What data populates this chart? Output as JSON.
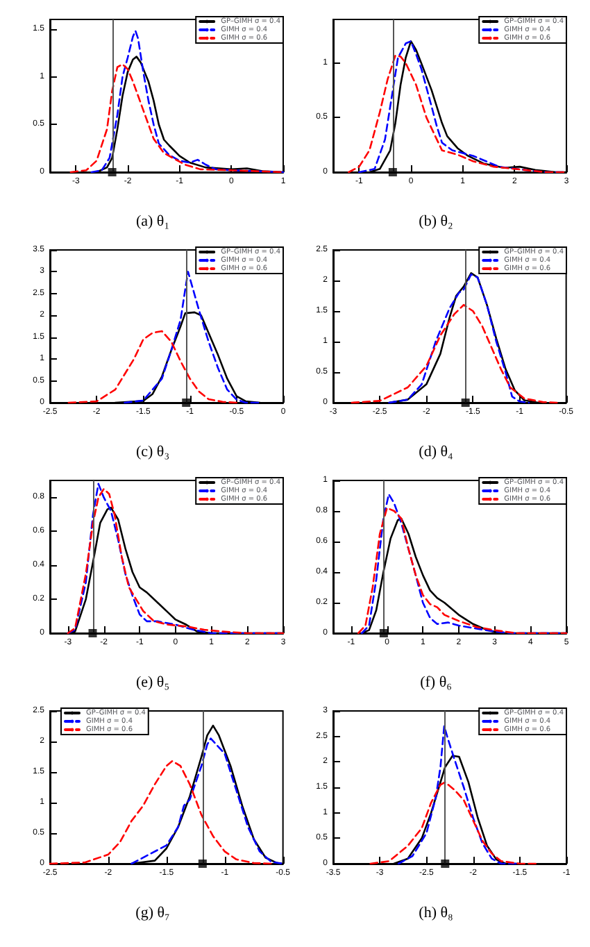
{
  "chart_data": [
    {
      "type": "line",
      "title": "(a) θ₁",
      "xlim": [
        -3.5,
        1
      ],
      "xticks": [
        -3,
        -2,
        -1,
        0,
        1
      ],
      "ylim": [
        0,
        1.6
      ],
      "yticks": [
        0,
        0.5,
        1,
        1.5
      ],
      "legend": "top right",
      "marker": "none",
      "ref_lines": [
        {
          "axis": "x",
          "value": -2.3,
          "color": "#555555"
        }
      ],
      "series": [
        {
          "name": "GP–GIMH σ = 0.4",
          "color": "#000000",
          "line_style": "solid",
          "x": [
            -2.6,
            -2.4,
            -2.3,
            -2.2,
            -2.1,
            -2.0,
            -1.9,
            -1.83,
            -1.75,
            -1.6,
            -1.5,
            -1.4,
            -1.3,
            -1.2,
            -1.0,
            -0.8,
            -0.5,
            0,
            0.3,
            0.6,
            1
          ],
          "values": [
            0,
            0.05,
            0.15,
            0.45,
            0.8,
            1.05,
            1.18,
            1.21,
            1.15,
            0.95,
            0.75,
            0.5,
            0.34,
            0.28,
            0.17,
            0.1,
            0.05,
            0.03,
            0.04,
            0.01,
            0
          ]
        },
        {
          "name": "GIMH σ = 0.4",
          "color": "#0000ff",
          "line_style": "dashed",
          "x": [
            -2.7,
            -2.5,
            -2.35,
            -2.2,
            -2.1,
            -2.0,
            -1.9,
            -1.85,
            -1.8,
            -1.7,
            -1.6,
            -1.5,
            -1.4,
            -1.2,
            -1.0,
            -0.8,
            -0.65,
            -0.5,
            -0.3,
            0,
            0.5,
            1
          ],
          "values": [
            0,
            0.02,
            0.15,
            0.6,
            1.0,
            1.2,
            1.42,
            1.48,
            1.4,
            1.05,
            0.75,
            0.5,
            0.3,
            0.18,
            0.12,
            0.1,
            0.13,
            0.08,
            0.03,
            0.02,
            0.01,
            0
          ]
        },
        {
          "name": "GIMH σ = 0.6",
          "color": "#ff0000",
          "line_style": "dashed",
          "x": [
            -3.1,
            -2.8,
            -2.6,
            -2.4,
            -2.3,
            -2.2,
            -2.1,
            -2.0,
            -1.9,
            -1.7,
            -1.5,
            -1.3,
            -1.1,
            -0.9,
            -0.6,
            0,
            0.5,
            1
          ],
          "values": [
            0,
            0.02,
            0.12,
            0.45,
            0.85,
            1.1,
            1.13,
            1.08,
            0.95,
            0.65,
            0.35,
            0.2,
            0.14,
            0.08,
            0.03,
            0.02,
            0.01,
            0
          ]
        },
        {
          "type": "scatter",
          "marker": "square",
          "color": "#000000",
          "x": [
            -2.3
          ],
          "values": [
            0
          ]
        }
      ]
    },
    {
      "type": "line",
      "title": "(b) θ₂",
      "xlim": [
        -1.5,
        3
      ],
      "xticks": [
        -1,
        0,
        1,
        2,
        3
      ],
      "ylim": [
        0,
        1.4
      ],
      "yticks": [
        0,
        0.5,
        1
      ],
      "legend": "top right",
      "marker": "none",
      "ref_lines": [
        {
          "axis": "x",
          "value": -0.35,
          "color": "#555555"
        }
      ],
      "series": [
        {
          "name": "GP–GIMH σ = 0.4",
          "color": "#000000",
          "line_style": "solid",
          "x": [
            -0.8,
            -0.6,
            -0.4,
            -0.3,
            -0.2,
            -0.1,
            0,
            0.1,
            0.2,
            0.4,
            0.6,
            0.7,
            0.9,
            1.1,
            1.4,
            1.8,
            2.1,
            2.4,
            2.8,
            3
          ],
          "values": [
            0,
            0.03,
            0.2,
            0.45,
            0.8,
            1.05,
            1.2,
            1.12,
            1.0,
            0.75,
            0.45,
            0.33,
            0.22,
            0.15,
            0.08,
            0.04,
            0.05,
            0.02,
            0,
            0
          ]
        },
        {
          "name": "GIMH σ = 0.4",
          "color": "#0000ff",
          "line_style": "dashed",
          "x": [
            -1,
            -0.7,
            -0.5,
            -0.35,
            -0.25,
            -0.1,
            0,
            0.1,
            0.2,
            0.4,
            0.5,
            0.6,
            0.8,
            1.2,
            1.45,
            1.7,
            2.2,
            2.6,
            3
          ],
          "values": [
            0,
            0.03,
            0.3,
            0.75,
            1.05,
            1.18,
            1.2,
            1.08,
            0.95,
            0.6,
            0.42,
            0.27,
            0.2,
            0.15,
            0.1,
            0.05,
            0.02,
            0,
            0
          ]
        },
        {
          "name": "GIMH σ = 0.6",
          "color": "#ff0000",
          "line_style": "dashed",
          "x": [
            -1.2,
            -1,
            -0.8,
            -0.6,
            -0.45,
            -0.3,
            -0.2,
            -0.1,
            0.1,
            0.3,
            0.5,
            0.6,
            0.9,
            1.2,
            1.6,
            2,
            2.6,
            3
          ],
          "values": [
            0,
            0.05,
            0.2,
            0.55,
            0.85,
            1.07,
            1.06,
            1.0,
            0.8,
            0.5,
            0.3,
            0.2,
            0.16,
            0.1,
            0.05,
            0.03,
            0,
            0
          ]
        },
        {
          "type": "scatter",
          "marker": "square",
          "color": "#000000",
          "x": [
            -0.35
          ],
          "values": [
            0
          ]
        }
      ]
    },
    {
      "type": "line",
      "title": "(c) θ₃",
      "xlim": [
        -2.5,
        0
      ],
      "xticks": [
        -2.5,
        -2,
        -1.5,
        -1,
        -0.5,
        0
      ],
      "ylim": [
        0,
        3.5
      ],
      "yticks": [
        0,
        0.5,
        1,
        1.5,
        2,
        2.5,
        3,
        3.5
      ],
      "legend": "top right",
      "marker": "none",
      "ref_lines": [
        {
          "axis": "x",
          "value": -1.04,
          "color": "#555555"
        }
      ],
      "series": [
        {
          "name": "GP–GIMH σ = 0.4",
          "color": "#000000",
          "line_style": "solid",
          "x": [
            -1.8,
            -1.5,
            -1.4,
            -1.3,
            -1.2,
            -1.1,
            -1.05,
            -0.95,
            -0.88,
            -0.8,
            -0.7,
            -0.6,
            -0.5,
            -0.4,
            -0.25
          ],
          "values": [
            0,
            0.04,
            0.2,
            0.6,
            1.2,
            1.75,
            2.05,
            2.07,
            2.0,
            1.6,
            1.1,
            0.55,
            0.15,
            0.03,
            0
          ]
        },
        {
          "name": "GIMH σ = 0.4",
          "color": "#0000ff",
          "line_style": "dashed",
          "x": [
            -1.7,
            -1.5,
            -1.3,
            -1.2,
            -1.1,
            -1.05,
            -1.02,
            -0.98,
            -0.9,
            -0.8,
            -0.7,
            -0.6,
            -0.5,
            -0.4,
            -0.25
          ],
          "values": [
            0,
            0.05,
            0.55,
            1.2,
            1.9,
            2.6,
            3.0,
            2.7,
            2.1,
            1.4,
            0.8,
            0.3,
            0.07,
            0,
            0
          ]
        },
        {
          "name": "GIMH σ = 0.6",
          "color": "#ff0000",
          "line_style": "dashed",
          "x": [
            -2.3,
            -2.0,
            -1.8,
            -1.6,
            -1.5,
            -1.4,
            -1.3,
            -1.2,
            -1.1,
            -1.0,
            -0.9,
            -0.8,
            -0.65,
            -0.5
          ],
          "values": [
            0,
            0.03,
            0.3,
            1.0,
            1.45,
            1.6,
            1.64,
            1.4,
            0.95,
            0.55,
            0.25,
            0.08,
            0.02,
            0
          ]
        },
        {
          "type": "scatter",
          "marker": "square",
          "color": "#000000",
          "x": [
            -1.04
          ],
          "values": [
            0
          ]
        }
      ]
    },
    {
      "type": "line",
      "title": "(d) θ₄",
      "xlim": [
        -3,
        -0.5
      ],
      "xticks": [
        -3,
        -2.5,
        -2,
        -1.5,
        -1,
        -0.5
      ],
      "ylim": [
        0,
        2.5
      ],
      "yticks": [
        0,
        0.5,
        1,
        1.5,
        2,
        2.5
      ],
      "legend": "top right",
      "marker": "none",
      "ref_lines": [
        {
          "axis": "x",
          "value": -1.58,
          "color": "#555555"
        }
      ],
      "series": [
        {
          "name": "GP–GIMH σ = 0.4",
          "color": "#000000",
          "line_style": "solid",
          "x": [
            -2.4,
            -2.2,
            -2.0,
            -1.85,
            -1.75,
            -1.68,
            -1.6,
            -1.52,
            -1.45,
            -1.35,
            -1.25,
            -1.15,
            -1.05,
            -0.95,
            -0.8
          ],
          "values": [
            0,
            0.05,
            0.3,
            0.8,
            1.4,
            1.75,
            1.9,
            2.12,
            2.05,
            1.6,
            1.05,
            0.55,
            0.2,
            0.04,
            0
          ]
        },
        {
          "name": "GIMH σ = 0.4",
          "color": "#0000ff",
          "line_style": "dashed",
          "x": [
            -2.4,
            -2.2,
            -2.05,
            -1.9,
            -1.75,
            -1.65,
            -1.6,
            -1.52,
            -1.45,
            -1.35,
            -1.25,
            -1.15,
            -1.08,
            -1.0,
            -0.9
          ],
          "values": [
            0,
            0.05,
            0.3,
            1.0,
            1.55,
            1.8,
            1.85,
            2.1,
            2.05,
            1.6,
            1.0,
            0.5,
            0.1,
            0.02,
            0
          ]
        },
        {
          "name": "GIMH σ = 0.6",
          "color": "#ff0000",
          "line_style": "dashed",
          "x": [
            -2.8,
            -2.5,
            -2.2,
            -2.0,
            -1.85,
            -1.7,
            -1.6,
            -1.5,
            -1.4,
            -1.3,
            -1.2,
            -1.1,
            -0.95,
            -0.75,
            -0.6
          ],
          "values": [
            0,
            0.03,
            0.25,
            0.6,
            1.1,
            1.45,
            1.6,
            1.5,
            1.25,
            0.9,
            0.55,
            0.25,
            0.07,
            0.01,
            0
          ]
        },
        {
          "type": "scatter",
          "marker": "square",
          "color": "#000000",
          "x": [
            -1.58
          ],
          "values": [
            0
          ]
        }
      ]
    },
    {
      "type": "line",
      "title": "(e) θ₅",
      "xlim": [
        -3.5,
        3
      ],
      "xticks": [
        -3,
        -2,
        -1,
        0,
        1,
        2,
        3
      ],
      "ylim": [
        0,
        0.9
      ],
      "yticks": [
        0,
        0.2,
        0.4,
        0.6,
        0.8
      ],
      "legend": "top right",
      "marker": "none",
      "ref_lines": [
        {
          "axis": "x",
          "value": -2.31,
          "color": "#555555"
        }
      ],
      "series": [
        {
          "name": "GP–GIMH σ = 0.4",
          "color": "#000000",
          "line_style": "solid",
          "x": [
            -3,
            -2.8,
            -2.5,
            -2.3,
            -2.1,
            -1.9,
            -1.8,
            -1.6,
            -1.4,
            -1.2,
            -1.0,
            -0.8,
            -0.5,
            -0.2,
            0,
            0.3,
            0.6,
            1,
            3
          ],
          "values": [
            0,
            0.01,
            0.2,
            0.42,
            0.65,
            0.73,
            0.74,
            0.67,
            0.5,
            0.36,
            0.27,
            0.24,
            0.18,
            0.12,
            0.08,
            0.05,
            0.01,
            0,
            0
          ]
        },
        {
          "name": "GIMH σ = 0.4",
          "color": "#0000ff",
          "line_style": "dashed",
          "x": [
            -3,
            -2.8,
            -2.5,
            -2.3,
            -2.15,
            -2.0,
            -1.8,
            -1.6,
            -1.4,
            -1.2,
            -1.0,
            -0.8,
            -0.5,
            0,
            0.5,
            1,
            3
          ],
          "values": [
            0,
            0.02,
            0.3,
            0.7,
            0.88,
            0.8,
            0.72,
            0.55,
            0.35,
            0.22,
            0.11,
            0.07,
            0.07,
            0.05,
            0.02,
            0,
            0
          ]
        },
        {
          "name": "GIMH σ = 0.6",
          "color": "#ff0000",
          "line_style": "dashed",
          "x": [
            -3,
            -2.8,
            -2.5,
            -2.3,
            -2.15,
            -2.0,
            -1.85,
            -1.7,
            -1.5,
            -1.3,
            -1.1,
            -0.9,
            -0.6,
            -0.2,
            0.3,
            0.8,
            1.3,
            2,
            3
          ],
          "values": [
            0,
            0.03,
            0.35,
            0.65,
            0.8,
            0.85,
            0.82,
            0.7,
            0.45,
            0.27,
            0.2,
            0.13,
            0.07,
            0.05,
            0.04,
            0.02,
            0.01,
            0,
            0
          ]
        },
        {
          "type": "scatter",
          "marker": "square",
          "color": "#000000",
          "x": [
            -2.31
          ],
          "values": [
            0
          ]
        }
      ]
    },
    {
      "type": "line",
      "title": "(f) θ₆",
      "xlim": [
        -1.5,
        5
      ],
      "xticks": [
        -1,
        0,
        1,
        2,
        3,
        4,
        5
      ],
      "ylim": [
        0,
        1
      ],
      "yticks": [
        0,
        0.2,
        0.4,
        0.6,
        0.8,
        1
      ],
      "legend": "top right",
      "marker": "none",
      "ref_lines": [
        {
          "axis": "x",
          "value": -0.09,
          "color": "#555555"
        }
      ],
      "series": [
        {
          "name": "GP–GIMH σ = 0.4",
          "color": "#000000",
          "line_style": "solid",
          "x": [
            -0.7,
            -0.5,
            -0.3,
            -0.1,
            0.1,
            0.3,
            0.4,
            0.6,
            0.8,
            1.0,
            1.2,
            1.4,
            1.6,
            2.0,
            2.4,
            2.8,
            3.2,
            5
          ],
          "values": [
            0,
            0.02,
            0.15,
            0.4,
            0.62,
            0.74,
            0.75,
            0.65,
            0.5,
            0.38,
            0.28,
            0.23,
            0.2,
            0.12,
            0.06,
            0.02,
            0,
            0
          ]
        },
        {
          "name": "GIMH σ = 0.4",
          "color": "#0000ff",
          "line_style": "dashed",
          "x": [
            -0.7,
            -0.5,
            -0.3,
            -0.1,
            0.05,
            0.2,
            0.4,
            0.6,
            0.8,
            1.0,
            1.2,
            1.4,
            1.7,
            2.0,
            2.5,
            3,
            3.5,
            5
          ],
          "values": [
            0,
            0.05,
            0.35,
            0.75,
            0.91,
            0.85,
            0.72,
            0.55,
            0.38,
            0.2,
            0.1,
            0.06,
            0.07,
            0.05,
            0.03,
            0.01,
            0,
            0
          ]
        },
        {
          "name": "GIMH σ = 0.6",
          "color": "#ff0000",
          "line_style": "dashed",
          "x": [
            -0.8,
            -0.6,
            -0.4,
            -0.2,
            0,
            0.2,
            0.4,
            0.6,
            0.8,
            1.0,
            1.2,
            1.4,
            1.6,
            2.0,
            2.5,
            3.0,
            3.6,
            5
          ],
          "values": [
            0,
            0.05,
            0.3,
            0.65,
            0.82,
            0.8,
            0.75,
            0.55,
            0.38,
            0.25,
            0.19,
            0.17,
            0.12,
            0.08,
            0.04,
            0.02,
            0,
            0
          ]
        },
        {
          "type": "scatter",
          "marker": "square",
          "color": "#000000",
          "x": [
            -0.09
          ],
          "values": [
            0
          ]
        }
      ]
    },
    {
      "type": "line",
      "title": "(g) θ₇",
      "xlim": [
        -2.5,
        -0.5
      ],
      "xticks": [
        -2.5,
        -2,
        -1.5,
        -1,
        -0.5
      ],
      "ylim": [
        0,
        2.5
      ],
      "yticks": [
        0,
        0.5,
        1,
        1.5,
        2,
        2.5
      ],
      "legend": "top left",
      "marker": "none",
      "ref_lines": [
        {
          "axis": "x",
          "value": -1.19,
          "color": "#555555"
        }
      ],
      "series": [
        {
          "name": "GP–GIMH σ = 0.4",
          "color": "#000000",
          "line_style": "solid",
          "x": [
            -1.8,
            -1.6,
            -1.5,
            -1.4,
            -1.3,
            -1.2,
            -1.15,
            -1.1,
            -1.05,
            -0.95,
            -0.85,
            -0.75,
            -0.65,
            -0.55,
            -0.5
          ],
          "values": [
            0,
            0.05,
            0.25,
            0.6,
            1.1,
            1.75,
            2.1,
            2.26,
            2.1,
            1.6,
            0.95,
            0.4,
            0.1,
            0.01,
            0
          ]
        },
        {
          "name": "GIMH σ = 0.4",
          "color": "#0000ff",
          "line_style": "dashed",
          "x": [
            -1.8,
            -1.65,
            -1.5,
            -1.4,
            -1.35,
            -1.3,
            -1.2,
            -1.15,
            -1.12,
            -1.0,
            -0.9,
            -0.8,
            -0.7,
            -0.6,
            -0.5
          ],
          "values": [
            0,
            0.15,
            0.3,
            0.6,
            0.95,
            1.05,
            1.6,
            1.95,
            2.05,
            1.8,
            1.2,
            0.6,
            0.2,
            0.03,
            0
          ]
        },
        {
          "name": "GIMH σ = 0.6",
          "color": "#ff0000",
          "line_style": "dashed",
          "x": [
            -2.5,
            -2.2,
            -2.0,
            -1.9,
            -1.8,
            -1.7,
            -1.6,
            -1.5,
            -1.45,
            -1.38,
            -1.3,
            -1.2,
            -1.1,
            -1.0,
            -0.9,
            -0.75,
            -0.6
          ],
          "values": [
            0,
            0.02,
            0.15,
            0.35,
            0.7,
            0.95,
            1.3,
            1.6,
            1.68,
            1.6,
            1.3,
            0.8,
            0.45,
            0.2,
            0.07,
            0.01,
            0
          ]
        },
        {
          "type": "scatter",
          "marker": "square",
          "color": "#000000",
          "x": [
            -1.19
          ],
          "values": [
            0
          ]
        }
      ]
    },
    {
      "type": "line",
      "title": "(h) θ₈",
      "xlim": [
        -3.5,
        -1
      ],
      "xticks": [
        -3.5,
        -3,
        -2.5,
        -2,
        -1.5,
        -1
      ],
      "ylim": [
        0,
        3
      ],
      "yticks": [
        0,
        0.5,
        1,
        1.5,
        2,
        2.5,
        3
      ],
      "legend": "top right",
      "marker": "none",
      "ref_lines": [
        {
          "axis": "x",
          "value": -2.3,
          "color": "#555555"
        }
      ],
      "series": [
        {
          "name": "GP–GIMH σ = 0.4",
          "color": "#000000",
          "line_style": "solid",
          "x": [
            -2.85,
            -2.7,
            -2.55,
            -2.45,
            -2.35,
            -2.3,
            -2.22,
            -2.15,
            -2.05,
            -1.95,
            -1.85,
            -1.75,
            -1.65,
            -1.5
          ],
          "values": [
            0,
            0.1,
            0.5,
            1.0,
            1.6,
            1.9,
            2.12,
            2.1,
            1.6,
            0.9,
            0.35,
            0.08,
            0,
            0
          ]
        },
        {
          "name": "GIMH σ = 0.4",
          "color": "#0000ff",
          "line_style": "dashed",
          "x": [
            -2.8,
            -2.65,
            -2.5,
            -2.4,
            -2.35,
            -2.31,
            -2.27,
            -2.2,
            -2.1,
            -2.0,
            -1.9,
            -1.8,
            -1.7,
            -1.5
          ],
          "values": [
            0,
            0.15,
            0.6,
            1.3,
            1.9,
            2.7,
            2.45,
            2.05,
            1.5,
            0.9,
            0.4,
            0.1,
            0,
            0
          ]
        },
        {
          "name": "GIMH σ = 0.6",
          "color": "#ff0000",
          "line_style": "dashed",
          "x": [
            -3.1,
            -2.9,
            -2.7,
            -2.55,
            -2.45,
            -2.35,
            -2.3,
            -2.2,
            -2.1,
            -2.0,
            -1.9,
            -1.8,
            -1.7,
            -1.5,
            -1.3
          ],
          "values": [
            0,
            0.05,
            0.35,
            0.7,
            1.2,
            1.55,
            1.6,
            1.45,
            1.25,
            0.85,
            0.45,
            0.2,
            0.05,
            0,
            0
          ]
        },
        {
          "type": "scatter",
          "marker": "square",
          "color": "#000000",
          "x": [
            -2.3
          ],
          "values": [
            0
          ]
        }
      ]
    }
  ]
}
